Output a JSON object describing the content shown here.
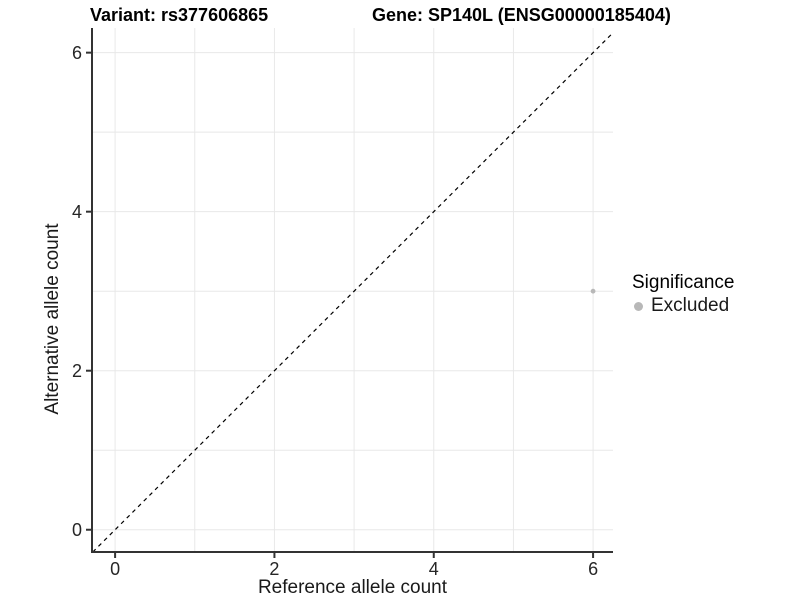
{
  "titles": {
    "variant": "Variant: rs377606865",
    "gene": "Gene: SP140L (ENSG00000185404)"
  },
  "chart_data": {
    "type": "scatter",
    "xlabel": "Reference allele count",
    "ylabel": "Alternative allele count",
    "x_ticks": [
      0,
      2,
      4,
      6
    ],
    "y_ticks": [
      0,
      2,
      4,
      6
    ],
    "xlim": [
      -0.29,
      6.25
    ],
    "ylim": [
      -0.28,
      6.31
    ],
    "grid": true,
    "grid_interval": 1,
    "points": [
      {
        "x": 6,
        "y": 3,
        "series": "Excluded"
      }
    ],
    "identity_line": {
      "style": "dashed"
    },
    "legend": {
      "title": "Significance",
      "position": "right",
      "entries": [
        {
          "label": "Excluded",
          "color": "#b8b8b8"
        }
      ]
    },
    "colors": {
      "background": "#ffffff",
      "grid": "#e8e8e8",
      "axis": "#333333",
      "tick_text": "#262626",
      "identity_line": "#000000"
    }
  }
}
